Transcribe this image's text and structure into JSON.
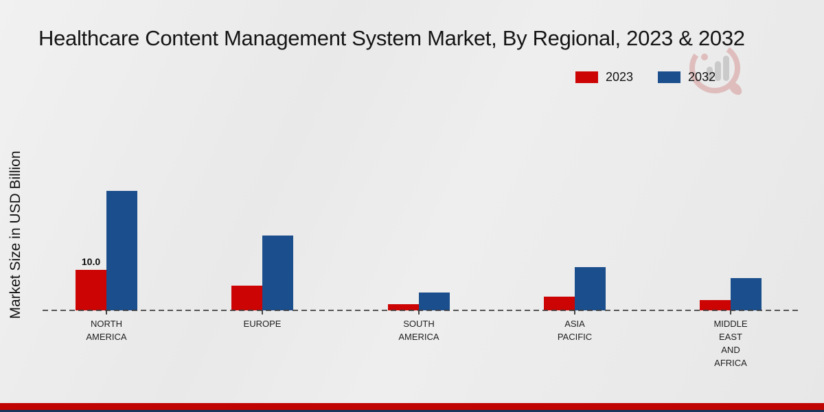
{
  "title": "Healthcare Content Management System Market, By Regional, 2023 & 2032",
  "ylabel": "Market Size in USD Billion",
  "legend": {
    "items": [
      {
        "label": "2023",
        "color": "#cc0404"
      },
      {
        "label": "2032",
        "color": "#1b4e8c"
      }
    ]
  },
  "colors": {
    "series_2023": "#cc0404",
    "series_2032": "#1b4e8c",
    "footer_stripe_red": "#c00303",
    "footer_stripe_navy": "#17375e",
    "background": "#ebebeb",
    "baseline": "#3a3a3a"
  },
  "watermark_icon": "market-research-logo",
  "chart_data": {
    "type": "bar",
    "title": "Healthcare Content Management System Market, By Regional, 2023 & 2032",
    "xlabel": "",
    "ylabel": "Market Size in USD Billion",
    "ylim": [
      0,
      30
    ],
    "grid": false,
    "legend_position": "top-right",
    "baseline_style": "dashed",
    "categories": [
      {
        "lines": [
          "NORTH",
          "AMERICA"
        ]
      },
      {
        "lines": [
          "EUROPE"
        ]
      },
      {
        "lines": [
          "SOUTH",
          "AMERICA"
        ]
      },
      {
        "lines": [
          "ASIA",
          "PACIFIC"
        ]
      },
      {
        "lines": [
          "MIDDLE",
          "EAST",
          "AND",
          "AFRICA"
        ]
      }
    ],
    "series": [
      {
        "name": "2023",
        "color": "#cc0404",
        "values": [
          10.0,
          6.1,
          1.5,
          3.4,
          2.5
        ]
      },
      {
        "name": "2032",
        "color": "#1b4e8c",
        "values": [
          29.5,
          18.5,
          4.4,
          10.7,
          8.0
        ]
      }
    ],
    "value_labels": [
      {
        "series": 0,
        "category": 0,
        "text": "10.0"
      }
    ]
  }
}
